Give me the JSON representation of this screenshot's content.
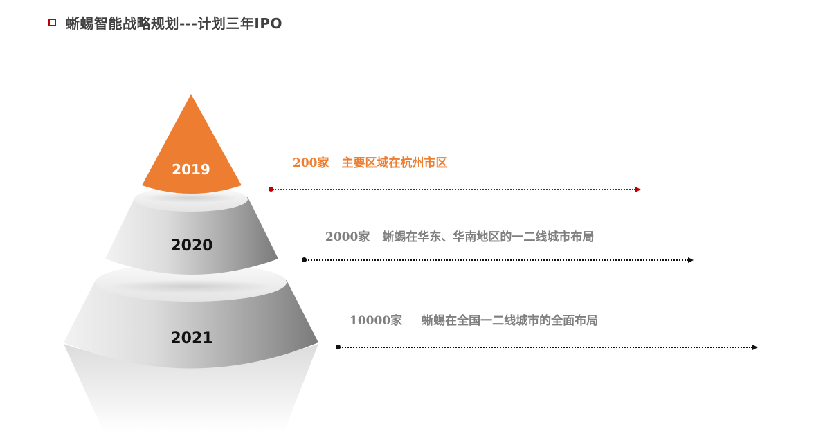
{
  "header": {
    "title": "蜥蜴智能战略规划---计划三年IPO"
  },
  "tiers": [
    {
      "year": "2019",
      "count": "200家",
      "desc": "主要区域在杭州市区",
      "color": "#ed7d31"
    },
    {
      "year": "2020",
      "count": "2000家",
      "desc": "蜥蜴在华东、华南地区的一二线城市布局",
      "color": "#7f7f7f"
    },
    {
      "year": "2021",
      "count": "10000家",
      "desc": "蜥蜴在全国一二线城市的全面布局",
      "color": "#7f7f7f"
    }
  ],
  "colors": {
    "accent": "#c00000",
    "orange": "#ed7d31",
    "gray_text": "#7f7f7f"
  }
}
